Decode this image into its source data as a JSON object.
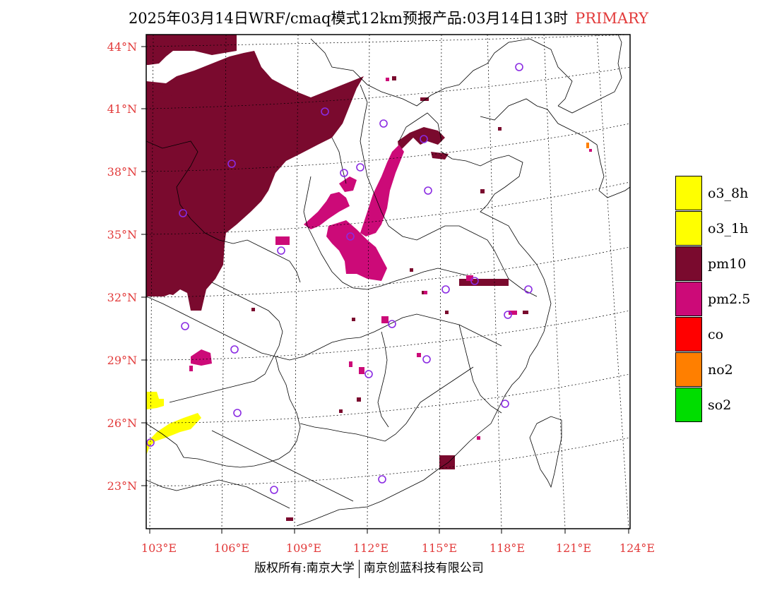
{
  "title": {
    "text": "2025年03月14日WRF/cmaq模式12km预报产品:03月14日13时",
    "tag": "PRIMARY"
  },
  "axes": {
    "lat_labels": [
      "44°N",
      "41°N",
      "38°N",
      "35°N",
      "32°N",
      "29°N",
      "26°N",
      "23°N"
    ],
    "lon_labels": [
      "103°E",
      "106°E",
      "109°E",
      "112°E",
      "115°E",
      "118°E",
      "121°E",
      "124°E"
    ],
    "label_color": "#e23a3a"
  },
  "legend": {
    "items": [
      {
        "label": "o3_8h",
        "color": "#ffff00"
      },
      {
        "label": "o3_1h",
        "color": "#ffff00"
      },
      {
        "label": "pm10",
        "color": "#7a0a2e"
      },
      {
        "label": "pm2.5",
        "color": "#cc0a78"
      },
      {
        "label": "co",
        "color": "#ff0000"
      },
      {
        "label": "no2",
        "color": "#ff7f00"
      },
      {
        "label": "so2",
        "color": "#00dd00"
      }
    ]
  },
  "footer": {
    "left": "版权所有:南京大学",
    "right": "南京创蓝科技有限公司"
  },
  "colors": {
    "pm10": "#7a0a2e",
    "pm25": "#cc0a78",
    "o3": "#ffff00",
    "station_marker": "#8a2be2"
  }
}
